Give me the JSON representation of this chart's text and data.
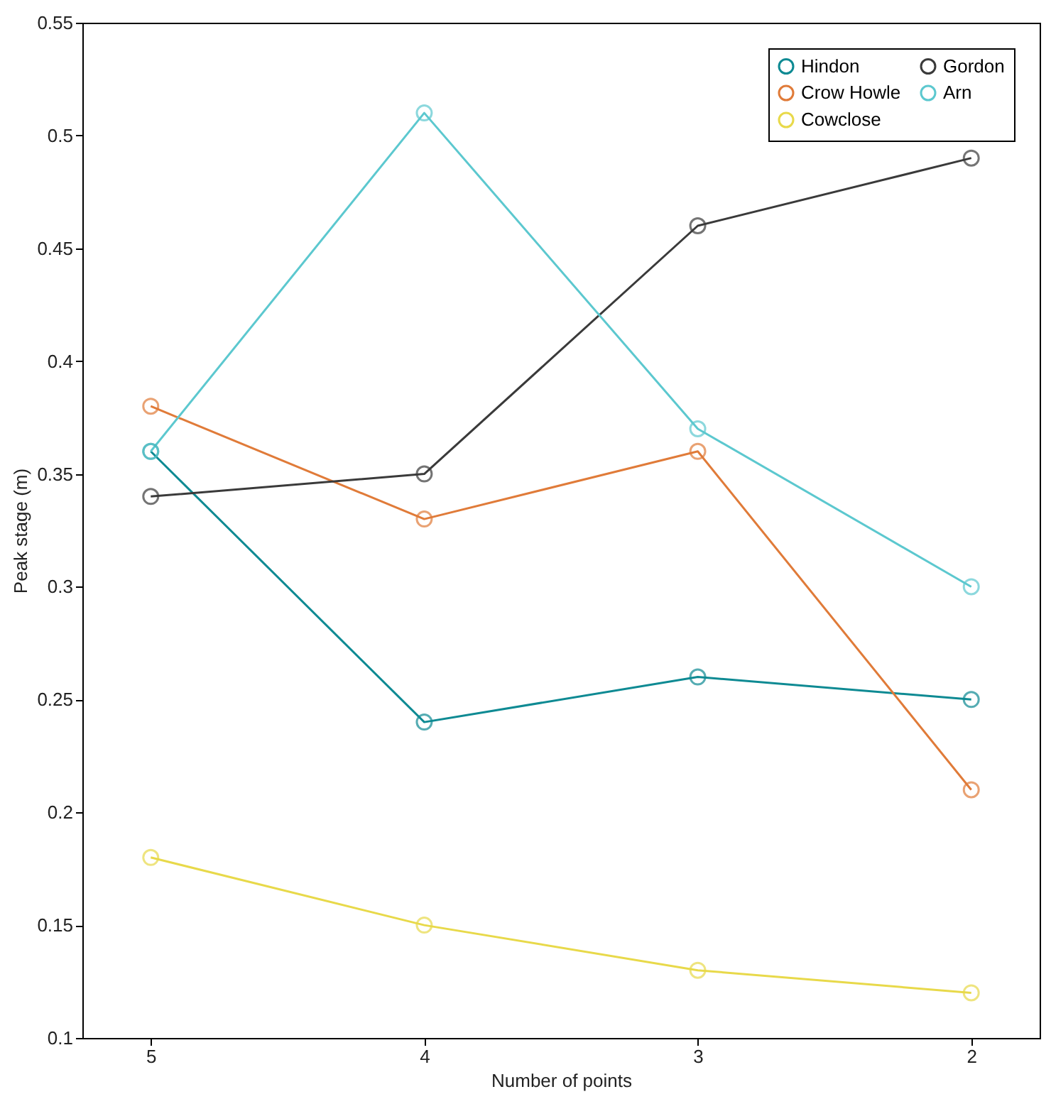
{
  "chart_data": {
    "type": "line",
    "xlabel": "Number of points",
    "ylabel": "Peak stage (m)",
    "x": [
      5,
      4,
      3,
      2
    ],
    "xlim": [
      5.25,
      1.75
    ],
    "xticks": [
      5,
      4,
      3,
      2
    ],
    "ylim": [
      0.1,
      0.55
    ],
    "yticks": [
      0.1,
      0.15,
      0.2,
      0.25,
      0.3,
      0.35,
      0.4,
      0.45,
      0.5,
      0.55
    ],
    "marker": "circle",
    "grid": false,
    "legend": "top right",
    "series": [
      {
        "name": "Hindon",
        "color": "#0e8a93",
        "values": [
          0.36,
          0.24,
          0.26,
          0.25
        ]
      },
      {
        "name": "Crow Howle",
        "color": "#e07b39",
        "values": [
          0.38,
          0.33,
          0.36,
          0.21
        ]
      },
      {
        "name": "Cowclose",
        "color": "#e8d94a",
        "values": [
          0.18,
          0.15,
          0.13,
          0.12
        ]
      },
      {
        "name": "Gordon",
        "color": "#3a3a3a",
        "values": [
          0.34,
          0.35,
          0.46,
          0.49
        ]
      },
      {
        "name": "Arn",
        "color": "#5cc8cf",
        "values": [
          0.36,
          0.51,
          0.37,
          0.3
        ]
      }
    ]
  }
}
